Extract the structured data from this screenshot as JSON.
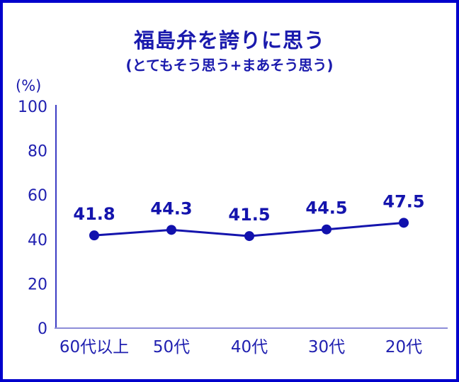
{
  "window": {
    "background_color": "#ffffff",
    "border_color": "#0000cc"
  },
  "chart_data": {
    "type": "line",
    "title": "福島弁を誇りに思う",
    "subtitle": "(とてもそう思う+まあそう思う)",
    "unit_label": "(%)",
    "categories": [
      "60代以上",
      "50代",
      "40代",
      "30代",
      "20代"
    ],
    "values": [
      41.8,
      44.3,
      41.5,
      44.5,
      47.5
    ],
    "value_labels": [
      "41.8",
      "44.3",
      "41.5",
      "44.5",
      "47.5"
    ],
    "y_ticks": [
      0,
      20,
      40,
      60,
      80,
      100
    ],
    "ylim": [
      0,
      100
    ],
    "grid": false,
    "legend": "none",
    "colors": {
      "line": "#1414ad",
      "point": "#1111ad",
      "text": "#1a1aad",
      "tick_text": "#2020b0",
      "y_axis": "#3c3cc4",
      "x_axis": "#8d8dd8"
    }
  }
}
